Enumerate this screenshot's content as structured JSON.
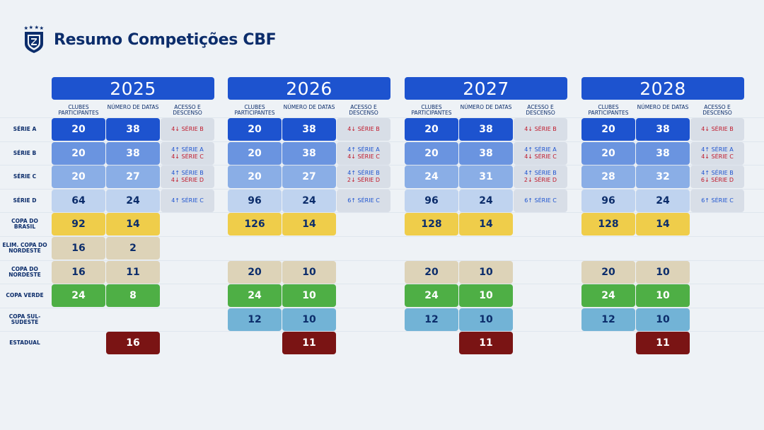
{
  "header": {
    "title": "Resumo Competições CBF",
    "logo_icon": "cbf-crest-icon"
  },
  "columns": {
    "clubes": "CLUBES PARTICIPANTES",
    "datas": "NÚMERO DE DATAS",
    "acesso": "ACESSO E DESCENSO"
  },
  "rows": [
    {
      "label": "SÉRIE A"
    },
    {
      "label": "SÉRIE B"
    },
    {
      "label": "SÉRIE C"
    },
    {
      "label": "SÉRIE D"
    },
    {
      "label": "COPA DO BRASIL"
    },
    {
      "label": "ELIM. COPA DO NORDESTE"
    },
    {
      "label": "COPA DO NORDESTE"
    },
    {
      "label": "COPA VERDE"
    },
    {
      "label": "COPA SUL-SUDESTE"
    },
    {
      "label": "ESTADUAL"
    }
  ],
  "years": [
    {
      "year": "2025",
      "serie_a": {
        "clubes": "20",
        "datas": "38",
        "acesso_down": "4↓ SÉRIE B"
      },
      "serie_b": {
        "clubes": "20",
        "datas": "38",
        "acesso_up": "4↑ SÉRIE A",
        "acesso_down": "4↓ SÉRIE C"
      },
      "serie_c": {
        "clubes": "20",
        "datas": "27",
        "acesso_up": "4↑ SÉRIE B",
        "acesso_down": "4↓ SÉRIE D"
      },
      "serie_d": {
        "clubes": "64",
        "datas": "24",
        "acesso_up": "4↑ SÉRIE C"
      },
      "copa_brasil": {
        "clubes": "92",
        "datas": "14"
      },
      "elim_nordeste": {
        "clubes": "16",
        "datas": "2"
      },
      "copa_nordeste": {
        "clubes": "16",
        "datas": "11"
      },
      "copa_verde": {
        "clubes": "24",
        "datas": "8"
      },
      "estadual": {
        "datas": "16"
      }
    },
    {
      "year": "2026",
      "serie_a": {
        "clubes": "20",
        "datas": "38",
        "acesso_down": "4↓ SÉRIE B"
      },
      "serie_b": {
        "clubes": "20",
        "datas": "38",
        "acesso_up": "4↑ SÉRIE A",
        "acesso_down": "4↓ SÉRIE C"
      },
      "serie_c": {
        "clubes": "20",
        "datas": "27",
        "acesso_up": "4↑ SÉRIE B",
        "acesso_down": "2↓ SÉRIE D"
      },
      "serie_d": {
        "clubes": "96",
        "datas": "24",
        "acesso_up": "6↑ SÉRIE C"
      },
      "copa_brasil": {
        "clubes": "126",
        "datas": "14"
      },
      "copa_nordeste": {
        "clubes": "20",
        "datas": "10"
      },
      "copa_verde": {
        "clubes": "24",
        "datas": "10"
      },
      "copa_sul_sudeste": {
        "clubes": "12",
        "datas": "10"
      },
      "estadual": {
        "datas": "11"
      }
    },
    {
      "year": "2027",
      "serie_a": {
        "clubes": "20",
        "datas": "38",
        "acesso_down": "4↓ SÉRIE B"
      },
      "serie_b": {
        "clubes": "20",
        "datas": "38",
        "acesso_up": "4↑ SÉRIE A",
        "acesso_down": "4↓ SÉRIE C"
      },
      "serie_c": {
        "clubes": "24",
        "datas": "31",
        "acesso_up": "4↑ SÉRIE B",
        "acesso_down": "2↓ SÉRIE D"
      },
      "serie_d": {
        "clubes": "96",
        "datas": "24",
        "acesso_up": "6↑ SÉRIE C"
      },
      "copa_brasil": {
        "clubes": "128",
        "datas": "14"
      },
      "copa_nordeste": {
        "clubes": "20",
        "datas": "10"
      },
      "copa_verde": {
        "clubes": "24",
        "datas": "10"
      },
      "copa_sul_sudeste": {
        "clubes": "12",
        "datas": "10"
      },
      "estadual": {
        "datas": "11"
      }
    },
    {
      "year": "2028",
      "serie_a": {
        "clubes": "20",
        "datas": "38",
        "acesso_down": "4↓ SÉRIE B"
      },
      "serie_b": {
        "clubes": "20",
        "datas": "38",
        "acesso_up": "4↑ SÉRIE A",
        "acesso_down": "4↓ SÉRIE C"
      },
      "serie_c": {
        "clubes": "28",
        "datas": "32",
        "acesso_up": "4↑ SÉRIE B",
        "acesso_down": "6↓ SÉRIE D"
      },
      "serie_d": {
        "clubes": "96",
        "datas": "24",
        "acesso_up": "6↑ SÉRIE C"
      },
      "copa_brasil": {
        "clubes": "128",
        "datas": "14"
      },
      "copa_nordeste": {
        "clubes": "20",
        "datas": "10"
      },
      "copa_verde": {
        "clubes": "24",
        "datas": "10"
      },
      "copa_sul_sudeste": {
        "clubes": "12",
        "datas": "10"
      },
      "estadual": {
        "datas": "11"
      }
    }
  ],
  "colors": {
    "header_blue": "#1d53cf",
    "serie_b": "#6a94e0",
    "serie_c": "#8aaee6",
    "serie_d": "#bfd3ef",
    "copa_brasil": "#efcd4a",
    "copa_nordeste": "#ddd3b8",
    "copa_verde": "#4eaf45",
    "copa_sul_sudeste": "#72b3d6",
    "estadual": "#7a1414",
    "title": "#0c2d6b",
    "acesso_up": "#1d53cf",
    "acesso_down": "#c0182a"
  }
}
